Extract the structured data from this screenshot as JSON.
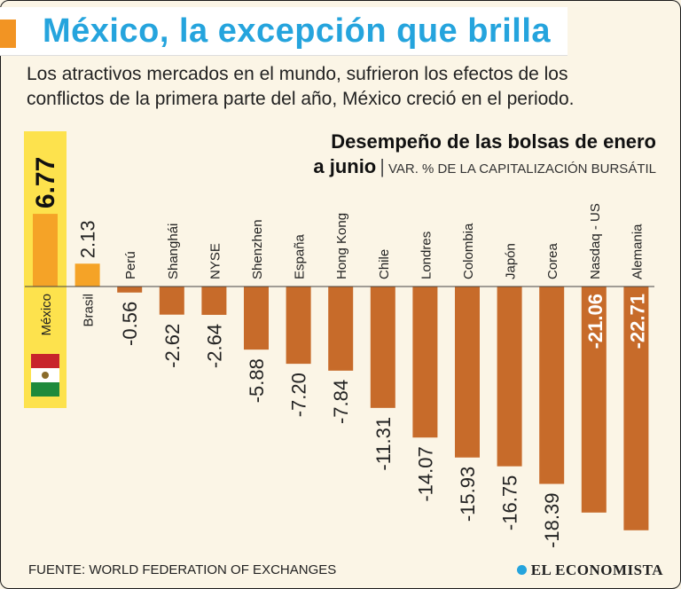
{
  "header": {
    "title": "México, la excepción que brilla",
    "subtitle": "Los atractivos mercados en el mundo, sufrieron los efectos de los conflictos de la primera parte del año, México creció en el periodo."
  },
  "chart_title": {
    "line1": "Desempeño de las bolsas de enero",
    "line2": "a junio",
    "unit": "VAR. % DE LA CAPITALIZACIÓN BURSÁTIL"
  },
  "footer": {
    "source": "FUENTE: WORLD FEDERATION OF EXCHANGES",
    "logo": "EL ECONOMISTA"
  },
  "colors": {
    "highlight_bg": "#fde24d",
    "highlight_bar": "#f5a327",
    "positive": "#f5a327",
    "negative": "#c76b2a",
    "title": "#25a4dd"
  },
  "chart_data": {
    "type": "bar",
    "title": "Desempeño de las bolsas de enero a junio",
    "ylabel": "VAR. % DE LA CAPITALIZACIÓN BURSÁTIL",
    "categories": [
      "México",
      "Brasil",
      "Perú",
      "Shanghái",
      "NYSE",
      "Shenzhen",
      "España",
      "Hong Kong",
      "Chile",
      "Londres",
      "Colombia",
      "Japón",
      "Corea",
      "Nasdaq - US",
      "Alemania"
    ],
    "labels": [
      "6.77",
      "2.13",
      "-0.56",
      "-2.62",
      "-2.64",
      "-5.88",
      "-7.20",
      "-7.84",
      "-11.31",
      "-14.07",
      "-15.93",
      "-16.75",
      "-18.39",
      "-21.06",
      "-22.71"
    ],
    "values": [
      6.77,
      2.13,
      -0.56,
      -2.62,
      -2.64,
      -5.88,
      -7.2,
      -7.84,
      -11.31,
      -14.07,
      -15.93,
      -16.75,
      -18.39,
      -21.06,
      -22.71
    ],
    "highlight": "México"
  }
}
